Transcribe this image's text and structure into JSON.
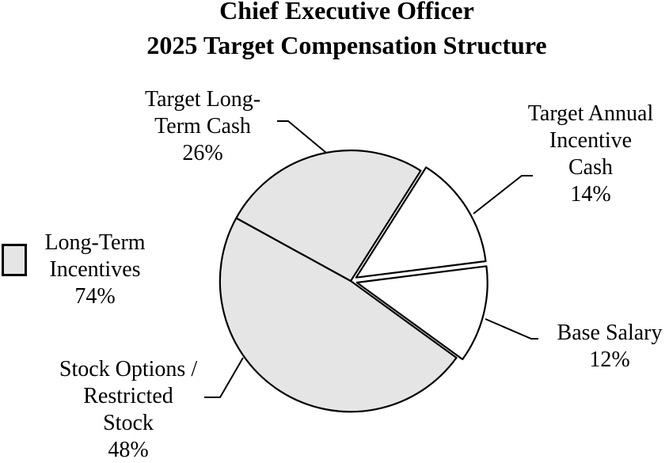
{
  "title": {
    "line1": "Chief Executive Officer",
    "line2": "2025 Target Compensation Structure"
  },
  "legend": {
    "lines": [
      "Long-Term",
      "Incentives",
      "74%"
    ],
    "swatch_color": "#e5e5e5"
  },
  "labels": {
    "target_long_term_cash": {
      "lines": [
        "Target Long-",
        "Term Cash",
        "26%"
      ]
    },
    "target_annual_incentive_cash": {
      "lines": [
        "Target Annual",
        "Incentive",
        "Cash",
        "14%"
      ]
    },
    "base_salary": {
      "lines": [
        "Base Salary",
        "12%"
      ]
    },
    "stock_options_restricted_stock": {
      "lines": [
        "Stock Options /",
        "Restricted",
        "Stock",
        "48%"
      ]
    }
  },
  "chart_data": {
    "type": "pie",
    "title": "Chief Executive Officer 2025 Target Compensation Structure",
    "unit": "%",
    "start_angle_deg": 57.6,
    "direction": "clockwise",
    "slices": [
      {
        "label": "Target Annual Incentive Cash",
        "value": 14,
        "fill": "#ffffff",
        "exploded": true
      },
      {
        "label": "Base Salary",
        "value": 12,
        "fill": "#ffffff",
        "exploded": true
      },
      {
        "label": "Stock Options / Restricted Stock",
        "value": 48,
        "fill": "#e5e5e5",
        "exploded": false
      },
      {
        "label": "Target Long-Term Cash",
        "value": 26,
        "fill": "#e5e5e5",
        "exploded": false
      }
    ],
    "grouping": {
      "label": "Long-Term Incentives",
      "value": 74,
      "members": [
        "Target Long-Term Cash",
        "Stock Options / Restricted Stock"
      ]
    },
    "colors": {
      "stroke": "#000000",
      "long_term_incentives_fill": "#e5e5e5",
      "other_fill": "#ffffff"
    },
    "legend_position": "left"
  }
}
